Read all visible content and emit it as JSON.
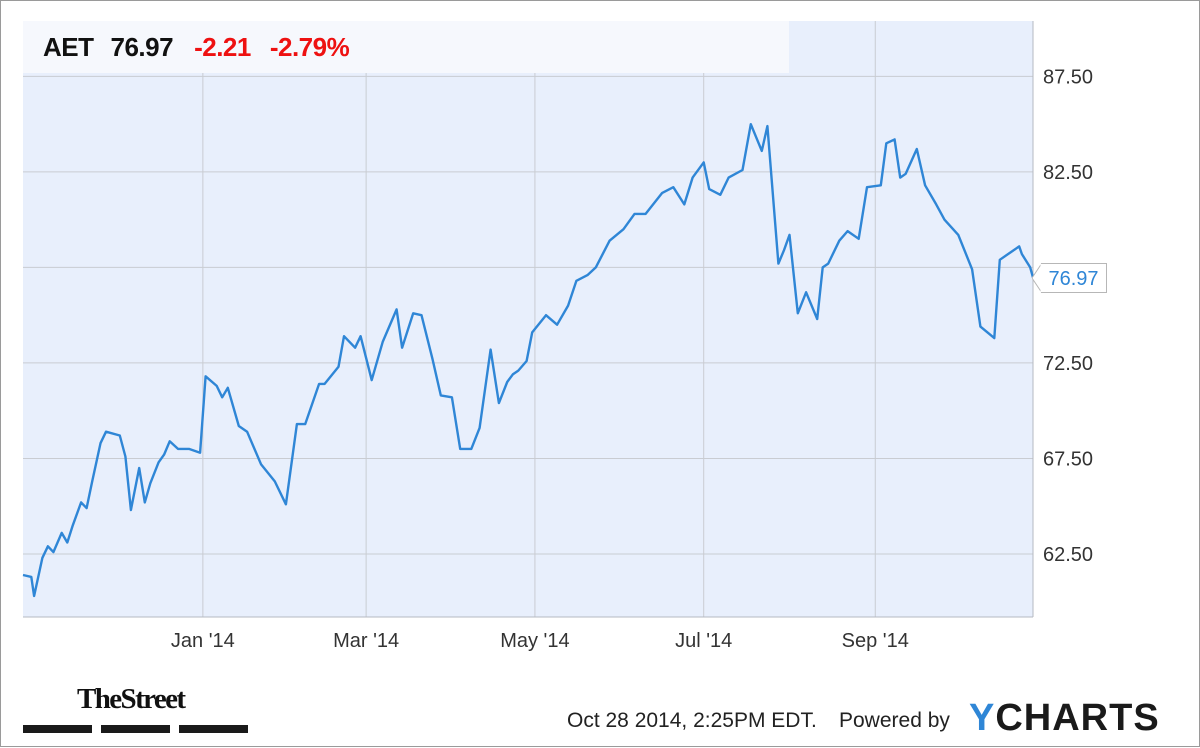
{
  "quote": {
    "symbol": "AET",
    "price": "76.97",
    "change": "-2.21",
    "change_pct": "-2.79%"
  },
  "last_price_flag": "76.97",
  "footer": {
    "logo_text": "TheStreet",
    "timestamp": "Oct 28 2014, 2:25PM EDT.",
    "powered_by": "Powered by",
    "ycharts_y": "Y",
    "ycharts_rest": "CHARTS"
  },
  "colors": {
    "line": "#2f86d6",
    "plot_bg": "#e8effc",
    "negative": "#ee1111"
  },
  "chart_data": {
    "type": "line",
    "title": "",
    "xlabel": "",
    "ylabel": "",
    "ylim": [
      59.2,
      90.4
    ],
    "x_range": [
      "2013-10-28",
      "2014-10-28"
    ],
    "x_ticks": [
      {
        "date": "2014-01-01",
        "label": "Jan '14"
      },
      {
        "date": "2014-03-01",
        "label": "Mar '14"
      },
      {
        "date": "2014-05-01",
        "label": "May '14"
      },
      {
        "date": "2014-07-01",
        "label": "Jul '14"
      },
      {
        "date": "2014-09-01",
        "label": "Sep '14"
      }
    ],
    "y_ticks": [
      62.5,
      67.5,
      72.5,
      77.5,
      82.5,
      87.5
    ],
    "y_tick_labels": [
      "62.50",
      "67.50",
      "72.50",
      "",
      "82.50",
      "87.50"
    ],
    "grid": true,
    "series": [
      {
        "x": [
          "2013-10-28",
          "2013-10-31",
          "2013-11-01",
          "2013-11-04",
          "2013-11-06",
          "2013-11-08",
          "2013-11-11",
          "2013-11-13",
          "2013-11-15",
          "2013-11-18",
          "2013-11-20",
          "2013-11-22",
          "2013-11-25",
          "2013-11-27",
          "2013-12-02",
          "2013-12-04",
          "2013-12-06",
          "2013-12-09",
          "2013-12-11",
          "2013-12-13",
          "2013-12-16",
          "2013-12-18",
          "2013-12-20",
          "2013-12-23",
          "2013-12-27",
          "2013-12-31",
          "2014-01-02",
          "2014-01-06",
          "2014-01-08",
          "2014-01-10",
          "2014-01-14",
          "2014-01-17",
          "2014-01-22",
          "2014-01-27",
          "2014-01-31",
          "2014-02-04",
          "2014-02-07",
          "2014-02-12",
          "2014-02-14",
          "2014-02-19",
          "2014-02-21",
          "2014-02-25",
          "2014-02-27",
          "2014-03-03",
          "2014-03-07",
          "2014-03-12",
          "2014-03-14",
          "2014-03-18",
          "2014-03-21",
          "2014-03-25",
          "2014-03-28",
          "2014-04-01",
          "2014-04-04",
          "2014-04-08",
          "2014-04-11",
          "2014-04-15",
          "2014-04-18",
          "2014-04-21",
          "2014-04-23",
          "2014-04-25",
          "2014-04-28",
          "2014-04-30",
          "2014-05-05",
          "2014-05-09",
          "2014-05-13",
          "2014-05-16",
          "2014-05-20",
          "2014-05-23",
          "2014-05-28",
          "2014-06-02",
          "2014-06-06",
          "2014-06-10",
          "2014-06-16",
          "2014-06-20",
          "2014-06-24",
          "2014-06-27",
          "2014-07-01",
          "2014-07-03",
          "2014-07-07",
          "2014-07-10",
          "2014-07-15",
          "2014-07-18",
          "2014-07-22",
          "2014-07-24",
          "2014-07-28",
          "2014-07-30",
          "2014-08-01",
          "2014-08-04",
          "2014-08-07",
          "2014-08-11",
          "2014-08-13",
          "2014-08-15",
          "2014-08-19",
          "2014-08-22",
          "2014-08-26",
          "2014-08-29",
          "2014-09-03",
          "2014-09-05",
          "2014-09-08",
          "2014-09-10",
          "2014-09-12",
          "2014-09-16",
          "2014-09-19",
          "2014-09-23",
          "2014-09-26",
          "2014-10-01",
          "2014-10-06",
          "2014-10-09",
          "2014-10-14",
          "2014-10-16",
          "2014-10-20",
          "2014-10-23",
          "2014-10-24",
          "2014-10-27",
          "2014-10-28"
        ],
        "values": [
          61.4,
          61.3,
          60.3,
          62.3,
          62.9,
          62.6,
          63.6,
          63.1,
          64.0,
          65.2,
          64.9,
          66.3,
          68.3,
          68.9,
          68.7,
          67.6,
          64.8,
          67.0,
          65.2,
          66.2,
          67.3,
          67.7,
          68.4,
          68.0,
          68.0,
          67.8,
          71.8,
          71.3,
          70.7,
          71.2,
          69.2,
          68.9,
          67.2,
          66.3,
          65.1,
          69.3,
          69.3,
          71.4,
          71.4,
          72.3,
          73.9,
          73.3,
          73.9,
          71.6,
          73.6,
          75.3,
          73.3,
          75.1,
          75.0,
          72.7,
          70.8,
          70.7,
          68.0,
          68.0,
          69.1,
          73.2,
          70.4,
          71.5,
          71.9,
          72.1,
          72.6,
          74.1,
          75.0,
          74.5,
          75.5,
          76.8,
          77.1,
          77.5,
          78.9,
          79.5,
          80.3,
          80.3,
          81.4,
          81.7,
          80.8,
          82.2,
          83.0,
          81.6,
          81.3,
          82.2,
          82.6,
          85.0,
          83.6,
          84.9,
          77.7,
          78.4,
          79.2,
          75.1,
          76.2,
          74.8,
          77.5,
          77.7,
          78.9,
          79.4,
          79.0,
          81.7,
          81.8,
          84.0,
          84.2,
          82.2,
          82.4,
          83.7,
          81.8,
          80.8,
          80.0,
          79.2,
          77.4,
          74.4,
          73.8,
          77.9,
          78.3,
          78.6,
          78.2,
          77.5,
          76.97
        ]
      }
    ],
    "last_value": 76.97
  }
}
